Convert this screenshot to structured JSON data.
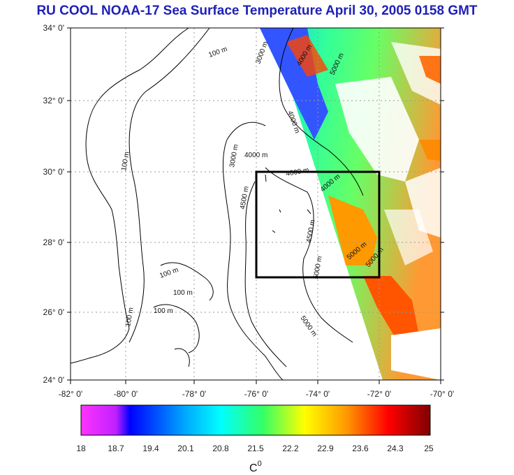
{
  "title": "RU COOL  NOAA-17 Sea Surface Temperature April 30, 2005 0158 GMT",
  "map": {
    "lat_labels": [
      "34° 0'",
      "32° 0'",
      "30° 0'",
      "28° 0'",
      "26° 0'",
      "24° 0'"
    ],
    "lon_labels": [
      "-82° 0'",
      "-80° 0'",
      "-78° 0'",
      "-76° 0'",
      "-74° 0'",
      "-72° 0'",
      "-70° 0'"
    ],
    "depth_labels": [
      "100 m",
      "3000 m",
      "5000 m",
      "4000 m",
      "4000 m",
      "100 m",
      "3000 m",
      "4000 m",
      "4000 m",
      "4000 m",
      "4500 m",
      "5000 m",
      "5000 m",
      "100 m",
      "100 m",
      "100 m",
      "5000 m",
      "100 m",
      "5000 m",
      "4500 m"
    ],
    "colors": {
      "land_outline": "#000000",
      "box": "#000000",
      "grid": "#888888"
    }
  },
  "colorbar": {
    "ticks": [
      "18",
      "18.7",
      "19.4",
      "20.1",
      "20.8",
      "21.5",
      "22.2",
      "22.9",
      "23.6",
      "24.3",
      "25"
    ],
    "unit": "C",
    "unit_sup": "0",
    "stops": [
      "#ff00ff",
      "#0000ff",
      "#00ffff",
      "#00ff00",
      "#ffff00",
      "#ff8800",
      "#ff0000",
      "#800000"
    ]
  }
}
